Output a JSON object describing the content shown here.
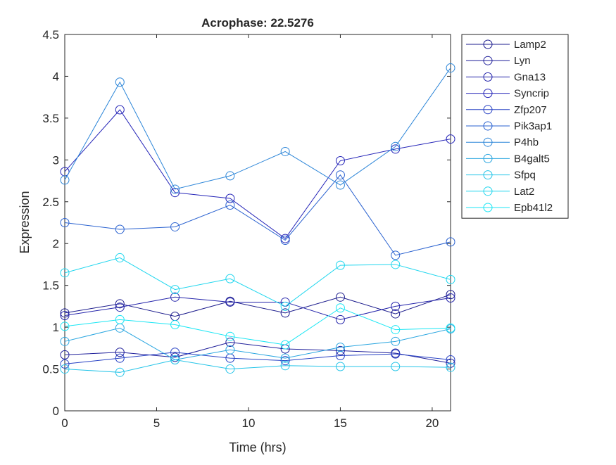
{
  "chart_data": {
    "type": "line",
    "title": "Acrophase: 22.5276",
    "xlabel": "Time (hrs)",
    "ylabel": "Expression",
    "xlim": [
      0,
      21
    ],
    "ylim": [
      0,
      4.5
    ],
    "xticks": [
      0,
      5,
      10,
      15,
      20
    ],
    "yticks": [
      0,
      0.5,
      1,
      1.5,
      2,
      2.5,
      3,
      3.5,
      4,
      4.5
    ],
    "xtick_labels": [
      "0",
      "5",
      "10",
      "15",
      "20"
    ],
    "ytick_labels": [
      "0",
      "0.5",
      "1",
      "1.5",
      "2",
      "2.5",
      "3",
      "3.5",
      "4",
      "4.5"
    ],
    "grid": false,
    "legend_position": "outside top-right",
    "marker": "open-circle",
    "x": [
      0,
      3,
      6,
      9,
      12,
      15,
      18,
      21
    ],
    "series": [
      {
        "name": "Lamp2",
        "color": "#1b1b8c",
        "values": [
          1.17,
          1.28,
          1.13,
          1.31,
          1.17,
          1.36,
          1.16,
          1.39
        ]
      },
      {
        "name": "Lyn",
        "color": "#1f1f9a",
        "values": [
          0.67,
          0.7,
          0.64,
          0.82,
          0.74,
          0.72,
          0.69,
          0.57
        ]
      },
      {
        "name": "Gna13",
        "color": "#2323aa",
        "values": [
          1.14,
          1.24,
          1.36,
          1.3,
          1.3,
          1.09,
          1.25,
          1.35
        ]
      },
      {
        "name": "Syncrip",
        "color": "#2525b8",
        "values": [
          2.86,
          3.6,
          2.61,
          2.54,
          2.06,
          2.99,
          3.13,
          3.25
        ]
      },
      {
        "name": "Zfp207",
        "color": "#2741c4",
        "values": [
          0.56,
          0.63,
          0.7,
          0.63,
          0.6,
          0.66,
          0.68,
          0.61
        ]
      },
      {
        "name": "Pik3ap1",
        "color": "#2a62d0",
        "values": [
          2.25,
          2.17,
          2.2,
          2.46,
          2.04,
          2.82,
          1.86,
          2.02
        ]
      },
      {
        "name": "P4hb",
        "color": "#2b85d8",
        "values": [
          2.76,
          3.93,
          2.65,
          2.81,
          3.1,
          2.7,
          3.16,
          4.1
        ]
      },
      {
        "name": "B4galt5",
        "color": "#2aa6e0",
        "values": [
          0.83,
          0.99,
          0.61,
          0.73,
          0.63,
          0.76,
          0.83,
          0.98
        ]
      },
      {
        "name": "Sfpq",
        "color": "#24c4e8",
        "values": [
          0.5,
          0.46,
          0.61,
          0.5,
          0.54,
          0.53,
          0.53,
          0.52
        ]
      },
      {
        "name": "Lat2",
        "color": "#1fd6ee",
        "values": [
          1.65,
          1.83,
          1.45,
          1.58,
          1.25,
          1.74,
          1.75,
          1.57
        ]
      },
      {
        "name": "Epb41l2",
        "color": "#19e6f4",
        "values": [
          1.01,
          1.09,
          1.03,
          0.89,
          0.79,
          1.23,
          0.97,
          0.99
        ]
      }
    ]
  }
}
